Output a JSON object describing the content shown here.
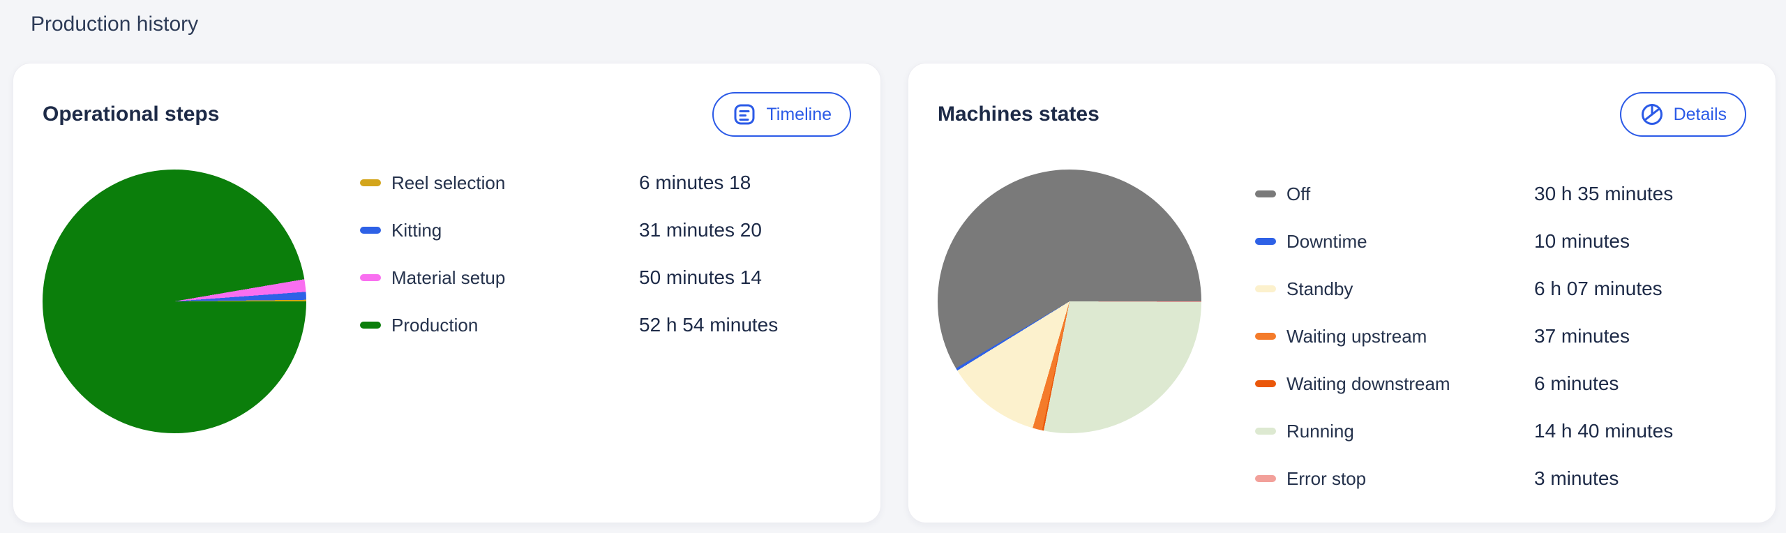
{
  "page": {
    "title": "Production history"
  },
  "colors": {
    "accent_blue": "#2b5ae7",
    "page_background": "#f4f5f8",
    "card_background": "#ffffff",
    "heading_text": "#1d2a47",
    "body_text": "#25324c"
  },
  "cards": [
    {
      "title": "Operational steps",
      "action_label": "Timeline",
      "action_icon": "timeline-icon"
    },
    {
      "title": "Machines states",
      "action_label": "Details",
      "action_icon": "pie-chart-icon"
    }
  ],
  "chart_data": [
    {
      "type": "pie",
      "title": "Operational steps",
      "unit": "minutes",
      "start_angle_deg": 0,
      "direction": "counterclockwise",
      "legend_position": "right",
      "slices": [
        {
          "label": "Reel selection",
          "display": "6 minutes 18",
          "minutes": 6.3,
          "color": "#d3a51b"
        },
        {
          "label": "Kitting",
          "display": "31 minutes 20",
          "minutes": 31.33,
          "color": "#2e61e6"
        },
        {
          "label": "Material setup",
          "display": "50 minutes 14",
          "minutes": 50.23,
          "color": "#f96ff0"
        },
        {
          "label": "Production",
          "display": "52 h 54 minutes",
          "minutes": 3174,
          "color": "#0b7e0b"
        }
      ]
    },
    {
      "type": "pie",
      "title": "Machines states",
      "unit": "minutes",
      "start_angle_deg": 0,
      "direction": "counterclockwise",
      "legend_position": "right",
      "slices": [
        {
          "label": "Off",
          "display": "30 h 35 minutes",
          "minutes": 1835,
          "color": "#7a7a7a"
        },
        {
          "label": "Downtime",
          "display": "10 minutes",
          "minutes": 10,
          "color": "#2e61e6"
        },
        {
          "label": "Standby",
          "display": "6 h 07 minutes",
          "minutes": 367,
          "color": "#fcf1cd"
        },
        {
          "label": "Waiting upstream",
          "display": "37 minutes",
          "minutes": 37,
          "color": "#f47b2a"
        },
        {
          "label": "Waiting downstream",
          "display": "6 minutes",
          "minutes": 6,
          "color": "#ea570a"
        },
        {
          "label": "Running",
          "display": "14 h 40 minutes",
          "minutes": 880,
          "color": "#dde9d1"
        },
        {
          "label": "Error stop",
          "display": "3 minutes",
          "minutes": 3,
          "color": "#f2a09a"
        }
      ]
    }
  ]
}
